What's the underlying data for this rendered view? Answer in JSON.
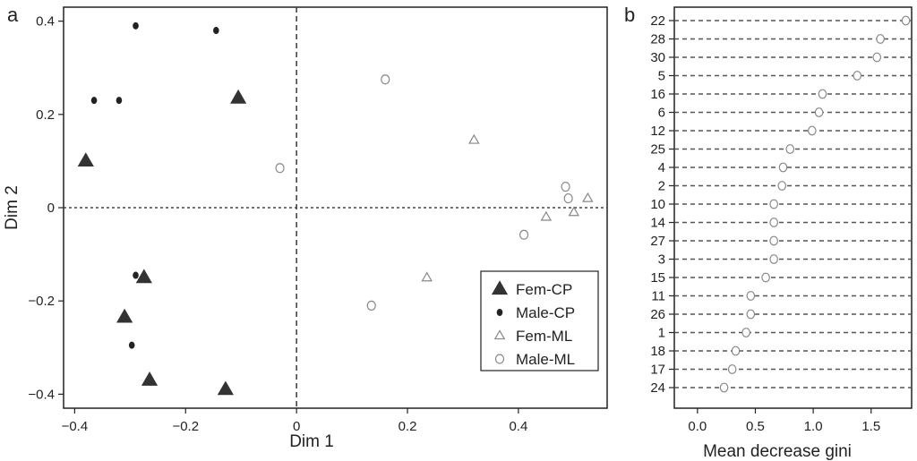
{
  "chart_data": [
    {
      "panel_label": "a",
      "type": "scatter",
      "xlabel": "Dim 1",
      "ylabel": "Dim 2",
      "xlim": [
        -0.42,
        0.56
      ],
      "ylim": [
        -0.43,
        0.43
      ],
      "xticks": [
        -0.4,
        -0.2,
        0,
        0.2,
        0.4
      ],
      "xtick_labels": [
        "−0.4",
        "−0.2",
        "0",
        "0.2",
        "0.4"
      ],
      "yticks": [
        -0.4,
        -0.2,
        0,
        0.2,
        0.4
      ],
      "ytick_labels": [
        "−0.4",
        "−0.2",
        "0",
        "0.2",
        "0.4"
      ],
      "reference_lines": {
        "x": 0,
        "y": 0
      },
      "legend_position": "bottom-right",
      "series": [
        {
          "name": "Fem-CP",
          "marker": "filled-triangle",
          "points": [
            [
              -0.38,
              0.1
            ],
            [
              -0.105,
              0.235
            ],
            [
              -0.275,
              -0.15
            ],
            [
              -0.31,
              -0.235
            ],
            [
              -0.265,
              -0.37
            ],
            [
              -0.128,
              -0.39
            ]
          ]
        },
        {
          "name": "Male-CP",
          "marker": "filled-circle",
          "points": [
            [
              -0.29,
              0.39
            ],
            [
              -0.145,
              0.38
            ],
            [
              -0.365,
              0.23
            ],
            [
              -0.32,
              0.23
            ],
            [
              -0.29,
              -0.145
            ],
            [
              -0.297,
              -0.295
            ]
          ]
        },
        {
          "name": "Fem-ML",
          "marker": "open-triangle",
          "points": [
            [
              0.32,
              0.145
            ],
            [
              0.525,
              0.02
            ],
            [
              0.5,
              -0.01
            ],
            [
              0.45,
              -0.02
            ],
            [
              0.235,
              -0.15
            ]
          ]
        },
        {
          "name": "Male-ML",
          "marker": "open-circle",
          "points": [
            [
              0.16,
              0.275
            ],
            [
              -0.03,
              0.085
            ],
            [
              0.485,
              0.045
            ],
            [
              0.49,
              0.02
            ],
            [
              0.41,
              -0.058
            ],
            [
              0.135,
              -0.21
            ]
          ]
        }
      ]
    },
    {
      "panel_label": "b",
      "type": "dot",
      "xlabel": "Mean decrease gini",
      "xlim": [
        -0.2,
        1.85
      ],
      "xticks": [
        0.0,
        0.5,
        1.0,
        1.5
      ],
      "xtick_labels": [
        "0.0",
        "0.5",
        "1.0",
        "1.5"
      ],
      "categories": [
        "22",
        "28",
        "30",
        "5",
        "16",
        "6",
        "12",
        "25",
        "4",
        "2",
        "10",
        "14",
        "27",
        "3",
        "15",
        "11",
        "26",
        "1",
        "18",
        "17",
        "24"
      ],
      "values": [
        1.8,
        1.58,
        1.55,
        1.38,
        1.08,
        1.05,
        0.99,
        0.8,
        0.74,
        0.73,
        0.66,
        0.66,
        0.66,
        0.66,
        0.59,
        0.46,
        0.46,
        0.42,
        0.33,
        0.3,
        0.23
      ]
    }
  ]
}
